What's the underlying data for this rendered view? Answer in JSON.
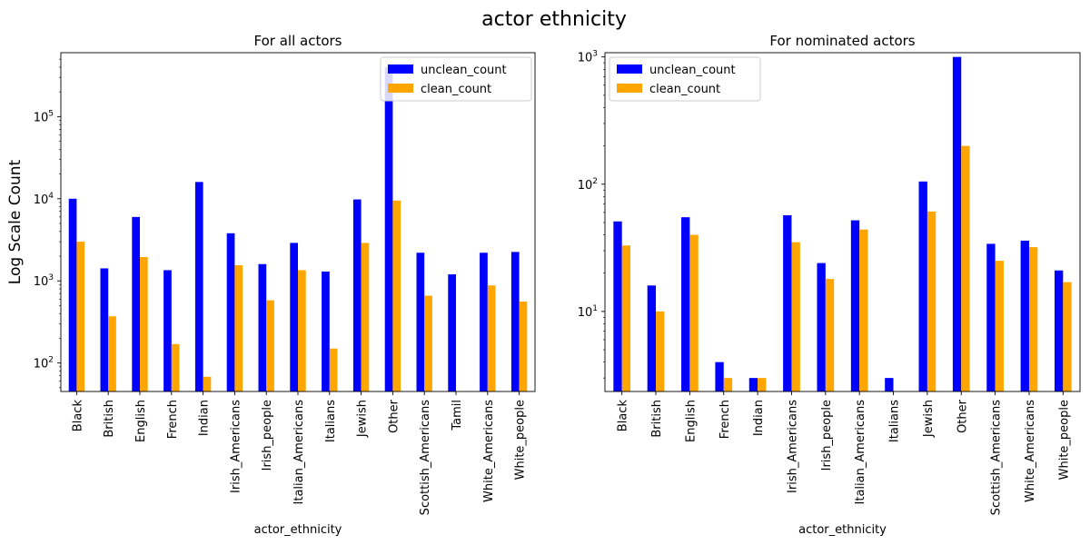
{
  "figure": {
    "title": "actor ethnicity"
  },
  "chart_data": [
    {
      "type": "bar",
      "title": "For all actors",
      "xlabel": "actor_ethnicity",
      "ylabel": "Log Scale Count",
      "yscale": "log",
      "ylim": [
        45,
        600000
      ],
      "yticks": [
        100,
        1000,
        10000,
        100000
      ],
      "ytick_labels": [
        [
          "10",
          "2"
        ],
        [
          "10",
          "3"
        ],
        [
          "10",
          "4"
        ],
        [
          "10",
          "5"
        ]
      ],
      "legend_position": "upper-right",
      "categories": [
        "Black",
        "British",
        "English",
        "French",
        "Indian",
        "Irish_Americans",
        "Irish_people",
        "Italian_Americans",
        "Italians",
        "Jewish",
        "Other",
        "Scottish_Americans",
        "Tamil",
        "White_Americans",
        "White_people"
      ],
      "series": [
        {
          "name": "unclean_count",
          "color": "#0000ff",
          "values": [
            10000,
            1420,
            6000,
            1350,
            16000,
            3800,
            1600,
            2900,
            1300,
            9800,
            400000,
            2200,
            1200,
            2200,
            2250
          ]
        },
        {
          "name": "clean_count",
          "color": "#ffa500",
          "values": [
            3000,
            370,
            1950,
            170,
            68,
            1550,
            580,
            1350,
            150,
            2900,
            9500,
            660,
            null,
            880,
            560
          ]
        }
      ]
    },
    {
      "type": "bar",
      "title": "For nominated actors",
      "xlabel": "actor_ethnicity",
      "ylabel": "",
      "yscale": "log",
      "ylim": [
        2.35,
        1080
      ],
      "yticks": [
        10,
        100,
        1000
      ],
      "ytick_labels": [
        [
          "10",
          "1"
        ],
        [
          "10",
          "2"
        ],
        [
          "10",
          "3"
        ]
      ],
      "legend_position": "upper-left",
      "categories": [
        "Black",
        "British",
        "English",
        "French",
        "Indian",
        "Irish_Americans",
        "Irish_people",
        "Italian_Americans",
        "Italians",
        "Jewish",
        "Other",
        "Scottish_Americans",
        "White_Americans",
        "White_people"
      ],
      "series": [
        {
          "name": "unclean_count",
          "color": "#0000ff",
          "values": [
            51,
            16,
            55,
            4,
            3,
            57,
            24,
            52,
            3,
            105,
            1000,
            34,
            36,
            21
          ]
        },
        {
          "name": "clean_count",
          "color": "#ffa500",
          "values": [
            33,
            10,
            40,
            3,
            3,
            35,
            18,
            44,
            null,
            61,
            200,
            25,
            32,
            17
          ]
        }
      ]
    }
  ]
}
